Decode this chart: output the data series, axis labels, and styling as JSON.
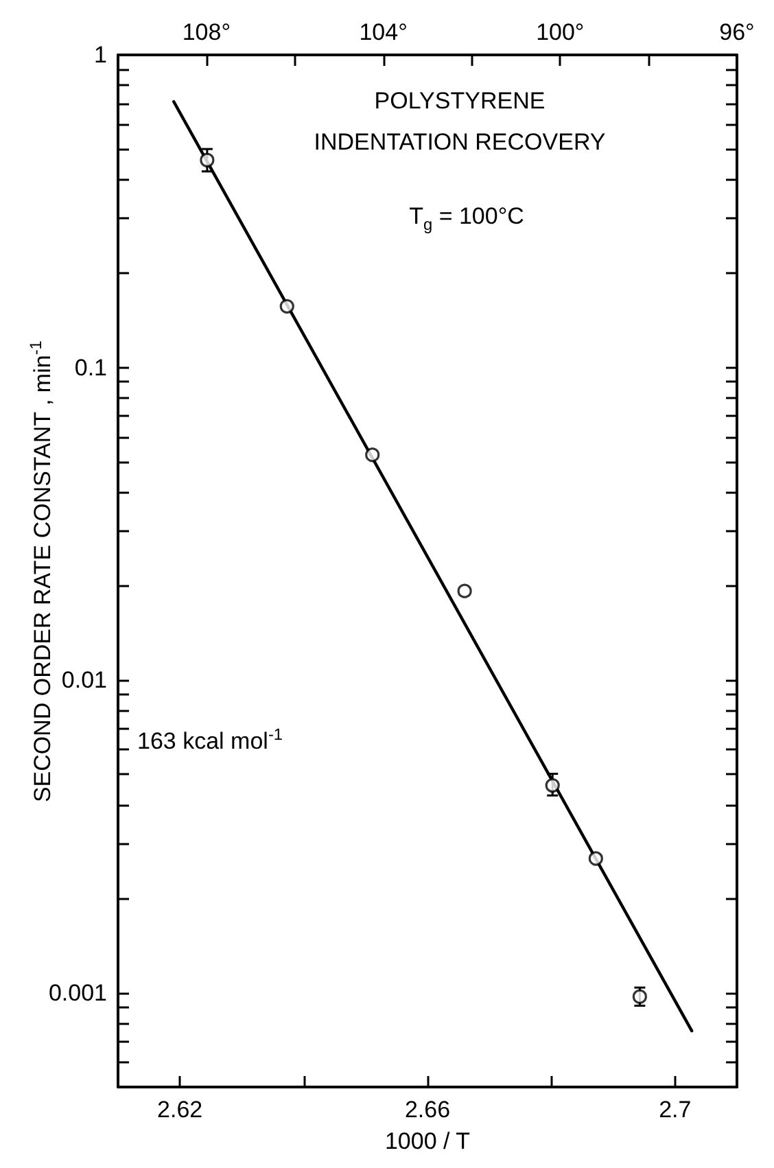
{
  "chart_data": {
    "type": "scatter",
    "xlabel": "1000 / T",
    "ylabel": "SECOND ORDER RATE CONSTANT , min$^{-1}$",
    "annotations": [
      "POLYSTYRENE",
      "INDENTATION RECOVERY",
      "T$_{g}$ = 100°C",
      "163 kcal mol$^{-1}$"
    ],
    "series": [
      {
        "color": "#000000",
        "marker": "circle",
        "x": [
          2.6244,
          2.6373,
          2.6511,
          2.666,
          2.6802,
          2.6872,
          2.6943
        ],
        "values": [
          0.461,
          0.157,
          0.0526,
          0.0193,
          0.00461,
          0.00269,
          0.000973
        ],
        "errors": [
          [
            0.424,
            0.5
          ],
          null,
          null,
          null,
          [
            0.00428,
            0.00502
          ],
          null,
          [
            0.00091,
            0.00104
          ]
        ]
      },
      {
        "type": "line",
        "color": "#000000",
        "line_style": "solid",
        "x": [
          2.619,
          2.7027
        ],
        "values": [
          0.709,
          0.000756
        ]
      }
    ],
    "log": "y",
    "grid": false,
    "xlim": [
      2.61,
      2.71
    ],
    "xticks": [
      2.62,
      {
        "value": 2.64,
        "label": null
      },
      2.66,
      {
        "value": 2.68,
        "label": null
      },
      2.7
    ],
    "x2lim": [
      110,
      96
    ],
    "x2ticks": [
      {
        "value": 108,
        "label": "108°"
      },
      {
        "value": 106,
        "label": null
      },
      {
        "value": 104,
        "label": "104°"
      },
      {
        "value": 102,
        "label": null
      },
      {
        "value": 100,
        "label": "100°"
      },
      {
        "value": 98,
        "label": null
      },
      {
        "value": 96,
        "label": "96°"
      }
    ],
    "ylim": [
      0.0005,
      1
    ],
    "yticks": [
      {
        "value": 0.0006,
        "label": null
      },
      {
        "value": 0.0007,
        "label": null
      },
      {
        "value": 0.0008,
        "label": null
      },
      {
        "value": 0.0009,
        "label": null
      },
      0.001,
      {
        "value": 0.002,
        "label": null
      },
      {
        "value": 0.003,
        "label": null
      },
      {
        "value": 0.004,
        "label": null
      },
      {
        "value": 0.005,
        "label": null
      },
      {
        "value": 0.006,
        "label": null
      },
      {
        "value": 0.007,
        "label": null
      },
      {
        "value": 0.008,
        "label": null
      },
      {
        "value": 0.009,
        "label": null
      },
      0.01,
      {
        "value": 0.02,
        "label": null
      },
      {
        "value": 0.03,
        "label": null
      },
      {
        "value": 0.04,
        "label": null
      },
      {
        "value": 0.05,
        "label": null
      },
      {
        "value": 0.06,
        "label": null
      },
      {
        "value": 0.07,
        "label": null
      },
      {
        "value": 0.08,
        "label": null
      },
      {
        "value": 0.09,
        "label": null
      },
      0.1,
      {
        "value": 0.2,
        "label": null
      },
      {
        "value": 0.3,
        "label": null
      },
      {
        "value": 0.4,
        "label": null
      },
      {
        "value": 0.5,
        "label": null
      },
      {
        "value": 0.6,
        "label": null
      },
      {
        "value": 0.7,
        "label": null
      },
      {
        "value": 0.8,
        "label": null
      },
      {
        "value": 0.9,
        "label": null
      },
      1
    ]
  }
}
